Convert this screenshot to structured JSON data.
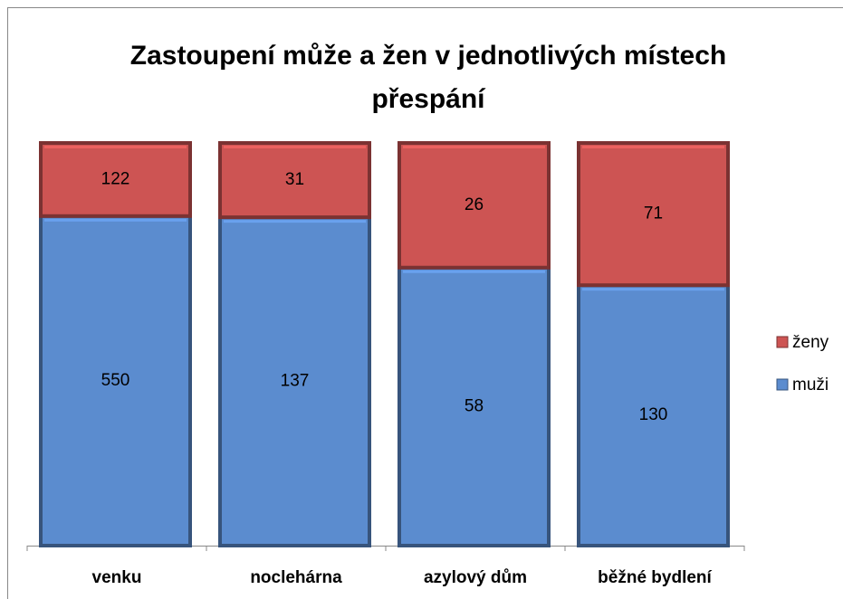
{
  "chart_data": {
    "type": "bar",
    "stacking": "percent",
    "title": "Zastoupení může a žen v jednotlivých místech přespání",
    "categories": [
      "venku",
      "noclehárna",
      "azylový dům",
      "běžné bydlení"
    ],
    "series": [
      {
        "name": "muži",
        "color": "#5b8ccf",
        "values": [
          550,
          137,
          58,
          130
        ]
      },
      {
        "name": "ženy",
        "color": "#cd5453",
        "values": [
          122,
          31,
          26,
          71
        ]
      }
    ]
  }
}
